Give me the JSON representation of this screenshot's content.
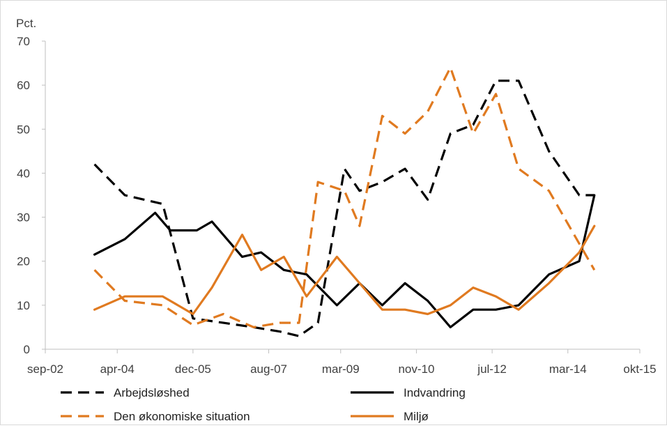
{
  "chart_data": {
    "type": "line",
    "ylabel": "Pct.",
    "ylim": [
      0,
      70
    ],
    "yticks": [
      0,
      10,
      20,
      30,
      40,
      50,
      60,
      70
    ],
    "xlim": [
      "2002-09-01",
      "2015-10-01"
    ],
    "xticks": [
      {
        "date": "2002-09-01",
        "label": "sep-02"
      },
      {
        "date": "2004-04-01",
        "label": "apr-04"
      },
      {
        "date": "2005-12-01",
        "label": "dec-05"
      },
      {
        "date": "2007-08-01",
        "label": "aug-07"
      },
      {
        "date": "2009-03-01",
        "label": "mar-09"
      },
      {
        "date": "2010-11-01",
        "label": "nov-10"
      },
      {
        "date": "2012-07-01",
        "label": "jul-12"
      },
      {
        "date": "2014-03-01",
        "label": "mar-14"
      },
      {
        "date": "2015-10-01",
        "label": "okt-15"
      }
    ],
    "grid": false,
    "legend": "bottom",
    "series": [
      {
        "name": "Arbejdsløshed",
        "color": "#000000",
        "dash": true,
        "points": [
          [
            "2003-10",
            42
          ],
          [
            "2004-06",
            35
          ],
          [
            "2005-04",
            33
          ],
          [
            "2005-12",
            7
          ],
          [
            "2006-08",
            6
          ],
          [
            "2007-04",
            5
          ],
          [
            "2007-11",
            4
          ],
          [
            "2008-04",
            3
          ],
          [
            "2008-09",
            6
          ],
          [
            "2009-04",
            41
          ],
          [
            "2009-08",
            36
          ],
          [
            "2010-02",
            38
          ],
          [
            "2010-08",
            41
          ],
          [
            "2011-02",
            34
          ],
          [
            "2011-08",
            49
          ],
          [
            "2012-02",
            51
          ],
          [
            "2012-08",
            61
          ],
          [
            "2013-02",
            61
          ],
          [
            "2013-10",
            45
          ],
          [
            "2014-06",
            35
          ],
          [
            "2014-10",
            35
          ]
        ]
      },
      {
        "name": "Indvandring",
        "color": "#000000",
        "dash": false,
        "points": [
          [
            "2003-10",
            21.5
          ],
          [
            "2004-06",
            25
          ],
          [
            "2005-02",
            31
          ],
          [
            "2005-06",
            27
          ],
          [
            "2006-01",
            27
          ],
          [
            "2006-05",
            29
          ],
          [
            "2007-01",
            21
          ],
          [
            "2007-06",
            22
          ],
          [
            "2007-12",
            18
          ],
          [
            "2008-06",
            17
          ],
          [
            "2009-02",
            10
          ],
          [
            "2009-08",
            15
          ],
          [
            "2010-02",
            10
          ],
          [
            "2010-08",
            15
          ],
          [
            "2011-02",
            11
          ],
          [
            "2011-08",
            5
          ],
          [
            "2012-02",
            9
          ],
          [
            "2012-08",
            9
          ],
          [
            "2013-02",
            10
          ],
          [
            "2013-10",
            17
          ],
          [
            "2014-06",
            20
          ],
          [
            "2014-10",
            35
          ]
        ]
      },
      {
        "name": "Den økonomiske situation",
        "color": "#e07a20",
        "dash": true,
        "points": [
          [
            "2003-10",
            18
          ],
          [
            "2004-06",
            11
          ],
          [
            "2005-04",
            10
          ],
          [
            "2005-12",
            5.5
          ],
          [
            "2006-08",
            8
          ],
          [
            "2007-04",
            5
          ],
          [
            "2007-11",
            6
          ],
          [
            "2008-04",
            6
          ],
          [
            "2008-09",
            38
          ],
          [
            "2009-04",
            36
          ],
          [
            "2009-08",
            28
          ],
          [
            "2010-02",
            53
          ],
          [
            "2010-08",
            49
          ],
          [
            "2011-02",
            54
          ],
          [
            "2011-08",
            64
          ],
          [
            "2012-02",
            49
          ],
          [
            "2012-08",
            58
          ],
          [
            "2013-02",
            41
          ],
          [
            "2013-10",
            36
          ],
          [
            "2014-06",
            24
          ],
          [
            "2014-10",
            18
          ]
        ]
      },
      {
        "name": "Miljø",
        "color": "#e07a20",
        "dash": false,
        "points": [
          [
            "2003-10",
            9
          ],
          [
            "2004-06",
            12
          ],
          [
            "2005-04",
            12
          ],
          [
            "2005-12",
            8
          ],
          [
            "2006-05",
            14
          ],
          [
            "2007-01",
            26
          ],
          [
            "2007-06",
            18
          ],
          [
            "2007-12",
            21
          ],
          [
            "2008-06",
            12
          ],
          [
            "2009-02",
            21
          ],
          [
            "2010-02",
            9
          ],
          [
            "2010-08",
            9
          ],
          [
            "2011-02",
            8
          ],
          [
            "2011-08",
            10
          ],
          [
            "2012-02",
            14
          ],
          [
            "2012-08",
            12
          ],
          [
            "2013-02",
            9
          ],
          [
            "2013-10",
            15
          ],
          [
            "2014-06",
            22
          ],
          [
            "2014-10",
            28
          ]
        ]
      }
    ]
  }
}
